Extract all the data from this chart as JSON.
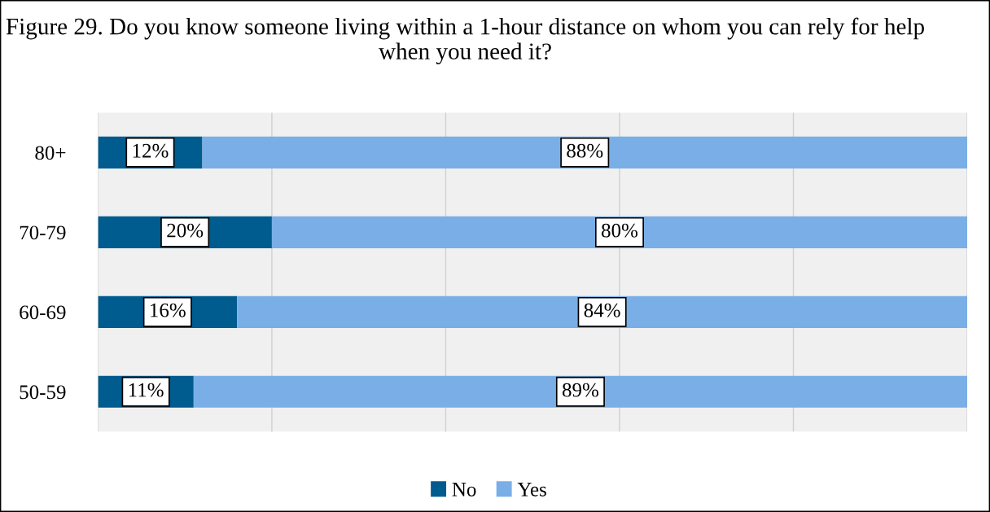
{
  "chart_data": {
    "type": "bar",
    "orientation": "horizontal",
    "stacked": true,
    "title": "Figure 29. Do you know someone living within a 1-hour distance on whom you can rely for help when you need it?",
    "categories": [
      "80+",
      "70-79",
      "60-69",
      "50-59"
    ],
    "series": [
      {
        "name": "No",
        "color": "#005b8e",
        "values": [
          12,
          20,
          16,
          11
        ],
        "value_labels": [
          "12%",
          "20%",
          "16%",
          "11%"
        ]
      },
      {
        "name": "Yes",
        "color": "#7aaee6",
        "values": [
          88,
          80,
          84,
          89
        ],
        "value_labels": [
          "88%",
          "80%",
          "84%",
          "89%"
        ]
      }
    ],
    "xlim": [
      0,
      100
    ],
    "xticks": [
      {
        "value": 0,
        "label": null
      },
      {
        "value": 20,
        "label": null
      },
      {
        "value": 40,
        "label": null
      },
      {
        "value": 60,
        "label": null
      },
      {
        "value": 80,
        "label": null
      },
      {
        "value": 100,
        "label": null
      }
    ],
    "grid": "x",
    "tick_labels": "y",
    "legend": "bottom"
  }
}
